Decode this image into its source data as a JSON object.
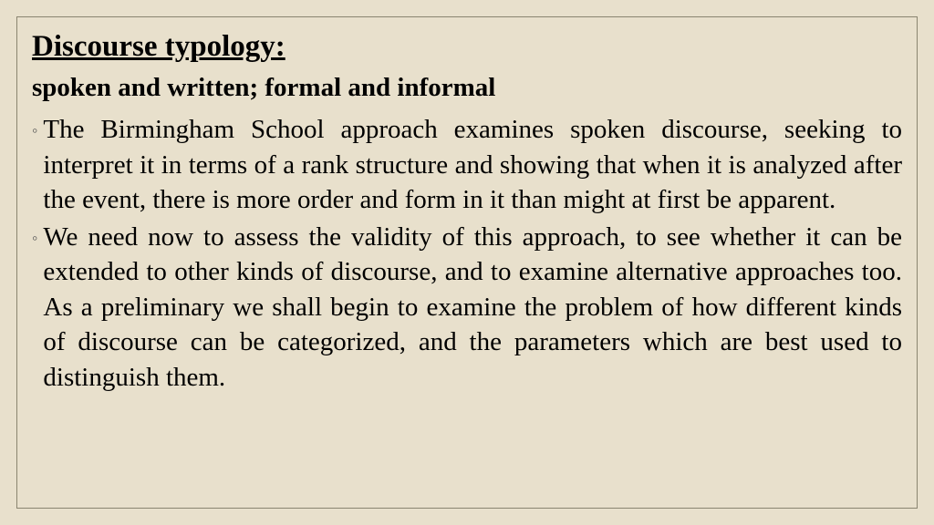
{
  "background_color": "#e8e0cc",
  "border_color": "#8a8570",
  "text_color": "#000000",
  "font_family": "Georgia, Times New Roman, serif",
  "title": {
    "text": "Discourse typology:",
    "fontsize": 33,
    "bold": true,
    "underline": true
  },
  "subtitle": {
    "text": "spoken and written; formal and informal",
    "fontsize": 29,
    "bold": true
  },
  "bullet_marker": "◦",
  "bullets": [
    {
      "text": "The Birmingham School approach examines spoken discourse, seeking to interpret it in terms of a rank structure and showing that when it is analyzed after the event, there is more order and form in it than might at first be apparent."
    },
    {
      "text": "We need now to assess the validity of this approach, to see whether it can be extended to other kinds of discourse, and to examine alternative approaches too. As a preliminary we shall begin to examine the problem of how different kinds of discourse can be categorized, and the parameters which are best used to distinguish them."
    }
  ],
  "body_fontsize": 29,
  "body_align": "justify"
}
